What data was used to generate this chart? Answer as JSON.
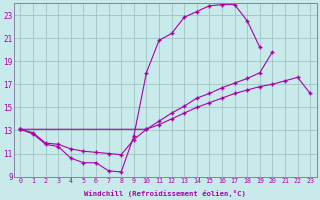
{
  "xlabel": "Windchill (Refroidissement éolien,°C)",
  "background_color": "#c8eaea",
  "line_color": "#aa00aa",
  "grid_color": "#99bbbb",
  "xlim": [
    -0.5,
    23.5
  ],
  "ylim": [
    9,
    24
  ],
  "xticks": [
    0,
    1,
    2,
    3,
    4,
    5,
    6,
    7,
    8,
    9,
    10,
    11,
    12,
    13,
    14,
    15,
    16,
    17,
    18,
    19,
    20,
    21,
    22,
    23
  ],
  "yticks": [
    9,
    11,
    13,
    15,
    17,
    19,
    21,
    23
  ],
  "line1_y": [
    13.1,
    12.7,
    11.8,
    11.6,
    10.6,
    10.2,
    10.2,
    9.5,
    9.4,
    12.5,
    18.0,
    20.8,
    21.4,
    22.8,
    23.3,
    23.8,
    23.9,
    23.9,
    22.5,
    20.2,
    null,
    null,
    null,
    null
  ],
  "line2_y": [
    13.1,
    12.8,
    11.9,
    11.8,
    11.4,
    11.2,
    11.1,
    11.0,
    10.9,
    12.2,
    13.1,
    13.8,
    14.5,
    15.1,
    15.8,
    16.2,
    16.7,
    17.1,
    17.5,
    18.0,
    19.8,
    null,
    null,
    null
  ],
  "line3_y": [
    13.1,
    null,
    null,
    null,
    null,
    null,
    null,
    null,
    null,
    null,
    13.1,
    13.5,
    14.0,
    14.5,
    15.0,
    15.4,
    15.8,
    16.2,
    16.5,
    16.8,
    17.0,
    17.3,
    17.6,
    16.2
  ]
}
